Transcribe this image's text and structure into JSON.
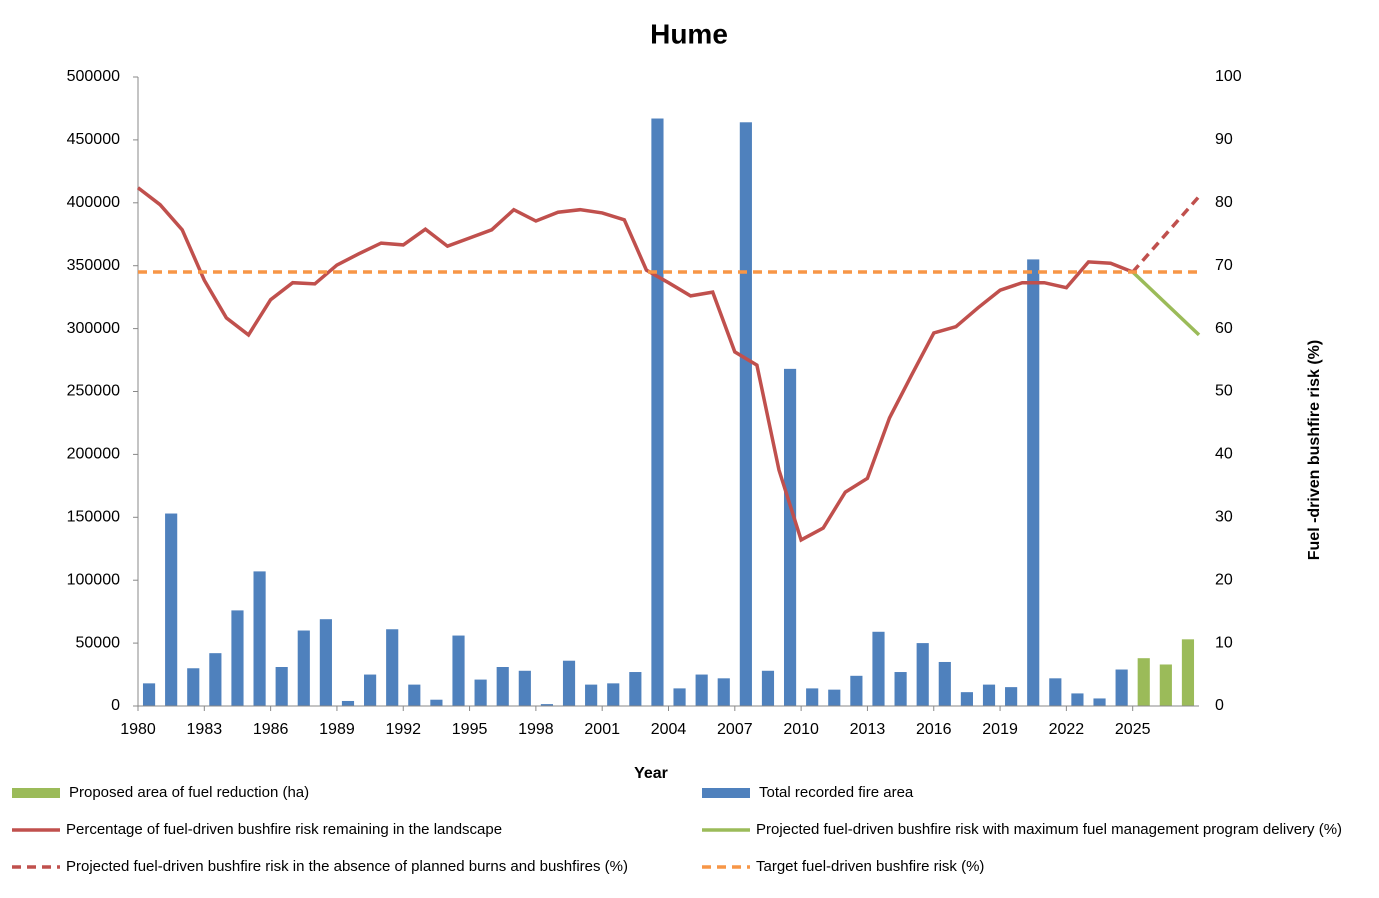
{
  "chart_data": {
    "type": "bar",
    "title": "Hume",
    "x_label": "Year",
    "y2_label": "Fuel -driven bushfire risk (%)",
    "xlim": [
      1980,
      2028
    ],
    "xticks": [
      1980,
      1983,
      1986,
      1989,
      1992,
      1995,
      1998,
      2001,
      2004,
      2007,
      2010,
      2013,
      2016,
      2019,
      2022,
      2025
    ],
    "ylim": [
      0,
      500000
    ],
    "yticks": [
      0,
      50000,
      100000,
      150000,
      200000,
      250000,
      300000,
      350000,
      400000,
      450000,
      500000
    ],
    "y2lim": [
      0,
      100
    ],
    "y2ticks": [
      0,
      10,
      20,
      30,
      40,
      50,
      60,
      70,
      80,
      90,
      100
    ],
    "series": [
      {
        "name": "Proposed area of fuel reduction (ha)",
        "type": "bar",
        "color": "#9bbb59",
        "x": [
          2025,
          2026,
          2027
        ],
        "values": [
          38000,
          33000,
          53000
        ]
      },
      {
        "name": "Percentage of fuel-driven bushfire risk remaining in the landscape",
        "type": "line",
        "axis": "y2",
        "color": "#c0504d",
        "dash": false,
        "x": [
          1980,
          1981,
          1982,
          1983,
          1984,
          1985,
          1986,
          1987,
          1988,
          1989,
          1990,
          1991,
          1992,
          1993,
          1994,
          1995,
          1996,
          1997,
          1998,
          1999,
          2000,
          2001,
          2002,
          2003,
          2004,
          2005,
          2006,
          2007,
          2008,
          2009,
          2010,
          2011,
          2012,
          2013,
          2014,
          2015,
          2016,
          2017,
          2018,
          2019,
          2020,
          2021,
          2022,
          2023,
          2024,
          2025
        ],
        "values": [
          82.4,
          79.7,
          75.7,
          67.7,
          61.7,
          59.0,
          64.6,
          67.3,
          67.1,
          70.1,
          71.9,
          73.6,
          73.3,
          75.8,
          73.1,
          74.4,
          75.7,
          78.9,
          77.1,
          78.5,
          78.9,
          78.4,
          77.3,
          69.3,
          67.3,
          65.2,
          65.8,
          56.3,
          54.2,
          37.5,
          26.4,
          28.3,
          34.0,
          36.2,
          45.8,
          52.6,
          59.3,
          60.3,
          63.3,
          66.1,
          67.3,
          67.3,
          66.5,
          70.6,
          70.4,
          69.0
        ]
      },
      {
        "name": "Projected fuel-driven bushfire risk in the absence of planned burns and bushfires (%)",
        "type": "line",
        "axis": "y2",
        "color": "#c0504d",
        "dash": true,
        "x": [
          2025,
          2028
        ],
        "values": [
          69,
          81
        ]
      },
      {
        "name": "Total recorded fire area",
        "type": "bar",
        "color": "#4f81bd",
        "x": [
          1980,
          1981,
          1982,
          1983,
          1984,
          1985,
          1986,
          1987,
          1988,
          1989,
          1990,
          1991,
          1992,
          1993,
          1994,
          1995,
          1996,
          1997,
          1998,
          1999,
          2000,
          2001,
          2002,
          2003,
          2004,
          2005,
          2006,
          2007,
          2008,
          2009,
          2010,
          2011,
          2012,
          2013,
          2014,
          2015,
          2016,
          2017,
          2018,
          2019,
          2020,
          2021,
          2022,
          2023,
          2024
        ],
        "values": [
          18000,
          153000,
          30000,
          42000,
          76000,
          107000,
          31000,
          60000,
          69000,
          4000,
          25000,
          61000,
          17000,
          5000,
          56000,
          21000,
          31000,
          28000,
          1500,
          36000,
          17000,
          18000,
          27000,
          467000,
          14000,
          25000,
          22000,
          464000,
          28000,
          268000,
          14000,
          13000,
          24000,
          59000,
          27000,
          50000,
          35000,
          11000,
          17000,
          15000,
          355000,
          22000,
          10000,
          6000,
          29000
        ]
      },
      {
        "name": "Projected fuel-driven bushfire risk with maximum fuel management program delivery  (%)",
        "type": "line",
        "axis": "y2",
        "color": "#9bbb59",
        "dash": false,
        "x": [
          2025,
          2028
        ],
        "values": [
          69,
          59
        ]
      },
      {
        "name": "Target fuel-driven bushfire risk (%)",
        "type": "line",
        "axis": "y2",
        "color": "#f79646",
        "dash": true,
        "x": [
          1980,
          2028
        ],
        "values": [
          69,
          69
        ]
      }
    ]
  }
}
